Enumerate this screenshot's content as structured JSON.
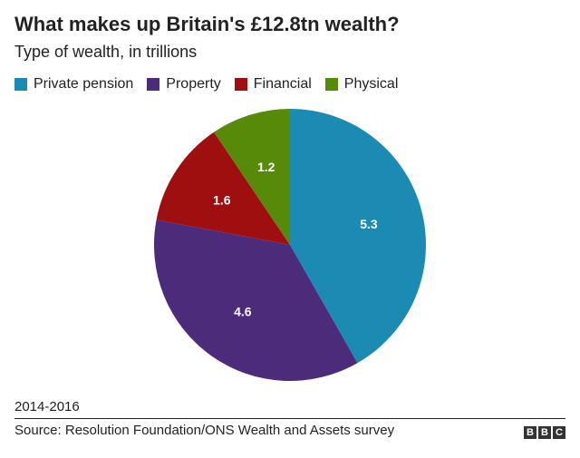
{
  "colors": {
    "private_pension": "#1b8bb3",
    "property": "#4b2b7a",
    "financial": "#a00f10",
    "physical": "#588a0a"
  },
  "chart_data": {
    "type": "pie",
    "title": "What makes up Britain's £12.8tn wealth?",
    "subtitle": "Type of wealth, in trillions",
    "legend_position": "top-left",
    "slices": [
      {
        "label": "Private pension",
        "value": 5.3,
        "value_label": "5.3",
        "color": "#1b8bb3"
      },
      {
        "label": "Property",
        "value": 4.6,
        "value_label": "4.6",
        "color": "#4b2b7a"
      },
      {
        "label": "Financial",
        "value": 1.6,
        "value_label": "1.6",
        "color": "#a00f10"
      },
      {
        "label": "Physical",
        "value": 1.2,
        "value_label": "1.2",
        "color": "#588a0a"
      }
    ]
  },
  "footer": {
    "period": "2014-2016",
    "source": "Source: Resolution Foundation/ONS Wealth and Assets survey",
    "logo_letters": [
      "B",
      "B",
      "C"
    ]
  }
}
